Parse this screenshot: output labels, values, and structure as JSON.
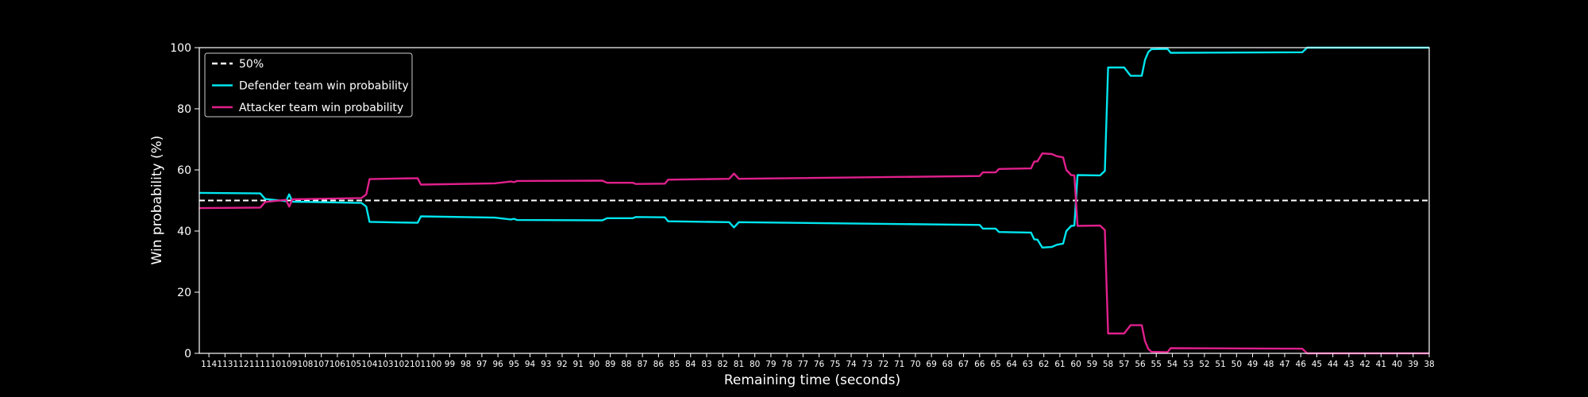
{
  "chart_data": {
    "type": "line",
    "title": "",
    "xlabel": "Remaining time (seconds)",
    "ylabel": "Win probability (%)",
    "xlim": [
      114.6,
      38
    ],
    "ylim": [
      0,
      100
    ],
    "yticks": [
      0,
      20,
      40,
      60,
      80,
      100
    ],
    "xticks": [
      114,
      113,
      112,
      111,
      110,
      109,
      108,
      107,
      106,
      105,
      104,
      103,
      102,
      101,
      100,
      99,
      98,
      97,
      96,
      95,
      94,
      93,
      92,
      91,
      90,
      89,
      88,
      87,
      86,
      85,
      84,
      83,
      82,
      81,
      80,
      79,
      78,
      77,
      76,
      75,
      74,
      73,
      72,
      71,
      70,
      69,
      68,
      67,
      66,
      65,
      64,
      63,
      62,
      61,
      60,
      59,
      58,
      57,
      56,
      55,
      54,
      53,
      52,
      51,
      50,
      49,
      48,
      47,
      46,
      45,
      44,
      43,
      42,
      41,
      40,
      39,
      38
    ],
    "grid": false,
    "legend_position": "top-left",
    "background": "#000000",
    "reference_line": {
      "name": "50%",
      "y": 50,
      "color": "#ffffff",
      "style": "dashed"
    },
    "series": [
      {
        "name": "Defender team win probability",
        "color": "#00e5ee",
        "points": [
          [
            114.6,
            52.5
          ],
          [
            110.8,
            52.3
          ],
          [
            110.5,
            50.5
          ],
          [
            109.2,
            49.8
          ],
          [
            109.0,
            52.0
          ],
          [
            108.8,
            49.6
          ],
          [
            104.5,
            49.2
          ],
          [
            104.2,
            48.0
          ],
          [
            104.0,
            43.0
          ],
          [
            101.0,
            42.7
          ],
          [
            100.8,
            44.8
          ],
          [
            96.2,
            44.4
          ],
          [
            95.2,
            43.8
          ],
          [
            95.0,
            44.0
          ],
          [
            94.8,
            43.6
          ],
          [
            89.5,
            43.5
          ],
          [
            89.2,
            44.2
          ],
          [
            87.6,
            44.2
          ],
          [
            87.4,
            44.6
          ],
          [
            85.6,
            44.5
          ],
          [
            85.4,
            43.2
          ],
          [
            81.6,
            42.9
          ],
          [
            81.3,
            41.2
          ],
          [
            81.0,
            42.9
          ],
          [
            66.0,
            42.0
          ],
          [
            65.8,
            40.8
          ],
          [
            65.0,
            40.8
          ],
          [
            64.8,
            39.7
          ],
          [
            62.8,
            39.5
          ],
          [
            62.6,
            37.3
          ],
          [
            62.4,
            37.2
          ],
          [
            62.1,
            34.6
          ],
          [
            61.5,
            34.8
          ],
          [
            61.2,
            35.5
          ],
          [
            60.8,
            35.9
          ],
          [
            60.6,
            40.0
          ],
          [
            60.3,
            41.7
          ],
          [
            60.1,
            41.8
          ],
          [
            59.9,
            58.3
          ],
          [
            58.5,
            58.2
          ],
          [
            58.2,
            59.7
          ],
          [
            58.0,
            93.5
          ],
          [
            57.0,
            93.5
          ],
          [
            56.6,
            90.8
          ],
          [
            55.9,
            90.8
          ],
          [
            55.7,
            96.0
          ],
          [
            55.5,
            98.5
          ],
          [
            55.3,
            99.5
          ],
          [
            54.3,
            99.6
          ],
          [
            54.1,
            98.3
          ],
          [
            45.9,
            98.5
          ],
          [
            45.6,
            100
          ],
          [
            38,
            100
          ]
        ]
      },
      {
        "name": "Attacker team win probability",
        "color": "#e0208c",
        "points": [
          [
            114.6,
            47.5
          ],
          [
            110.8,
            47.7
          ],
          [
            110.5,
            49.5
          ],
          [
            109.2,
            50.2
          ],
          [
            109.0,
            48.0
          ],
          [
            108.8,
            50.4
          ],
          [
            104.5,
            50.8
          ],
          [
            104.2,
            52.0
          ],
          [
            104.0,
            57.0
          ],
          [
            101.0,
            57.3
          ],
          [
            100.8,
            55.2
          ],
          [
            96.2,
            55.6
          ],
          [
            95.2,
            56.2
          ],
          [
            95.0,
            56.0
          ],
          [
            94.8,
            56.4
          ],
          [
            89.5,
            56.5
          ],
          [
            89.2,
            55.8
          ],
          [
            87.6,
            55.8
          ],
          [
            87.4,
            55.4
          ],
          [
            85.6,
            55.5
          ],
          [
            85.4,
            56.8
          ],
          [
            81.6,
            57.1
          ],
          [
            81.3,
            58.8
          ],
          [
            81.0,
            57.1
          ],
          [
            66.0,
            58.0
          ],
          [
            65.8,
            59.2
          ],
          [
            65.0,
            59.2
          ],
          [
            64.8,
            60.3
          ],
          [
            62.8,
            60.5
          ],
          [
            62.6,
            62.7
          ],
          [
            62.4,
            62.8
          ],
          [
            62.1,
            65.4
          ],
          [
            61.5,
            65.2
          ],
          [
            61.2,
            64.5
          ],
          [
            60.8,
            64.1
          ],
          [
            60.6,
            60.0
          ],
          [
            60.3,
            58.3
          ],
          [
            60.1,
            58.2
          ],
          [
            59.9,
            41.7
          ],
          [
            58.5,
            41.8
          ],
          [
            58.2,
            40.3
          ],
          [
            58.0,
            6.5
          ],
          [
            57.0,
            6.5
          ],
          [
            56.6,
            9.2
          ],
          [
            55.9,
            9.2
          ],
          [
            55.7,
            4.0
          ],
          [
            55.5,
            1.5
          ],
          [
            55.3,
            0.5
          ],
          [
            54.3,
            0.4
          ],
          [
            54.1,
            1.7
          ],
          [
            45.9,
            1.5
          ],
          [
            45.6,
            0
          ],
          [
            38,
            0
          ]
        ]
      }
    ]
  }
}
